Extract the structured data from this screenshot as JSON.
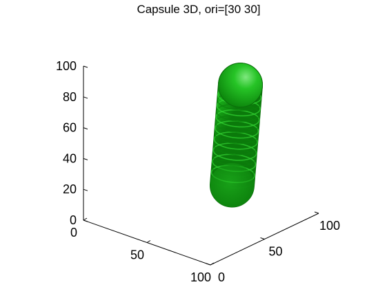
{
  "chart_data": {
    "type": "surface3d",
    "title": "Capsule 3D, ori=[30 30]",
    "xlabel": "",
    "ylabel": "",
    "zlabel": "",
    "x_axis": {
      "range": [
        0,
        100
      ],
      "ticks": [
        "0",
        "50",
        "100"
      ]
    },
    "y_axis": {
      "range": [
        0,
        100
      ],
      "ticks": [
        "0",
        "50",
        "100"
      ]
    },
    "z_axis": {
      "range": [
        0,
        100
      ],
      "ticks": [
        "0",
        "20",
        "40",
        "60",
        "80",
        "100"
      ]
    },
    "grid": false,
    "legend": "none",
    "shape": {
      "kind": "capsule",
      "color": "#1fb31f",
      "orientation_deg": [
        30,
        30
      ],
      "end_a": [
        50,
        50,
        25
      ],
      "end_b": [
        50,
        50,
        85
      ],
      "radius": 12
    }
  }
}
